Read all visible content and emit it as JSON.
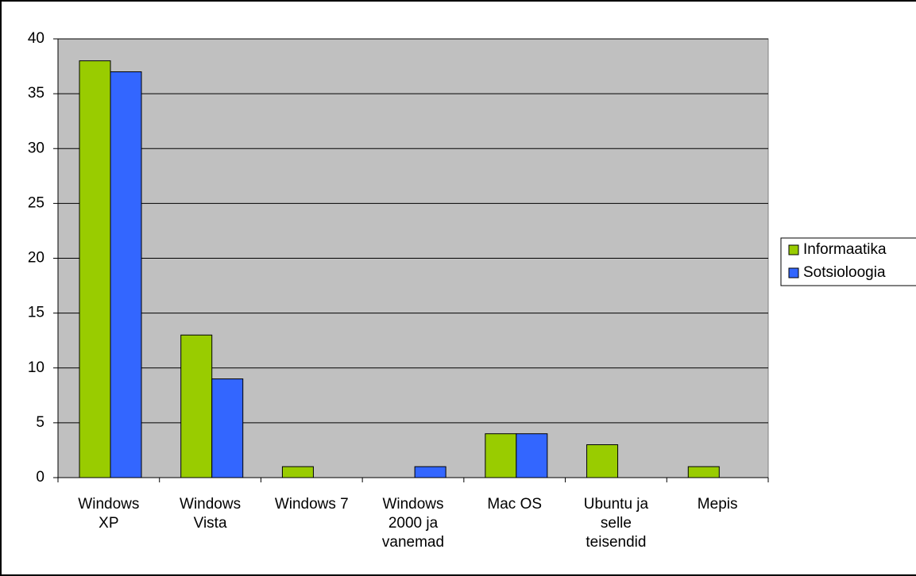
{
  "chart_data": {
    "type": "bar",
    "categories": [
      "Windows XP",
      "Windows Vista",
      "Windows 7",
      "Windows 2000 ja vanemad",
      "Mac OS",
      "Ubuntu ja selle teisendid",
      "Mepis"
    ],
    "series": [
      {
        "name": "Informaatika",
        "color": "#99cc00",
        "values": [
          38,
          13,
          1,
          0,
          4,
          3,
          1
        ]
      },
      {
        "name": "Sotsioloogia",
        "color": "#3366ff",
        "values": [
          37,
          9,
          0,
          1,
          4,
          0,
          0
        ]
      }
    ],
    "ylim": [
      0,
      40
    ],
    "yticks": [
      0,
      5,
      10,
      15,
      20,
      25,
      30,
      35,
      40
    ],
    "grid": true,
    "legend": "right"
  }
}
